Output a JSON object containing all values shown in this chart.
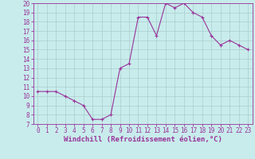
{
  "x": [
    0,
    1,
    2,
    3,
    4,
    5,
    6,
    7,
    8,
    9,
    10,
    11,
    12,
    13,
    14,
    15,
    16,
    17,
    18,
    19,
    20,
    21,
    22,
    23
  ],
  "y": [
    10.5,
    10.5,
    10.5,
    10.0,
    9.5,
    9.0,
    7.5,
    7.5,
    8.0,
    13.0,
    13.5,
    18.5,
    18.5,
    16.5,
    20.0,
    19.5,
    20.0,
    19.0,
    18.5,
    16.5,
    15.5,
    16.0,
    15.5,
    15.0
  ],
  "line_color": "#993399",
  "marker": "+",
  "bg_color": "#c8ecec",
  "grid_color": "#aacccc",
  "xlabel": "Windchill (Refroidissement éolien,°C)",
  "ylim": [
    7,
    20
  ],
  "xlim": [
    -0.5,
    23.5
  ],
  "yticks": [
    7,
    8,
    9,
    10,
    11,
    12,
    13,
    14,
    15,
    16,
    17,
    18,
    19,
    20
  ],
  "xticks": [
    0,
    1,
    2,
    3,
    4,
    5,
    6,
    7,
    8,
    9,
    10,
    11,
    12,
    13,
    14,
    15,
    16,
    17,
    18,
    19,
    20,
    21,
    22,
    23
  ],
  "tick_fontsize": 5.5,
  "xlabel_fontsize": 6.5,
  "label_color": "#993399",
  "spine_color": "#993399",
  "linewidth": 0.8,
  "markersize": 3,
  "markeredgewidth": 0.8
}
